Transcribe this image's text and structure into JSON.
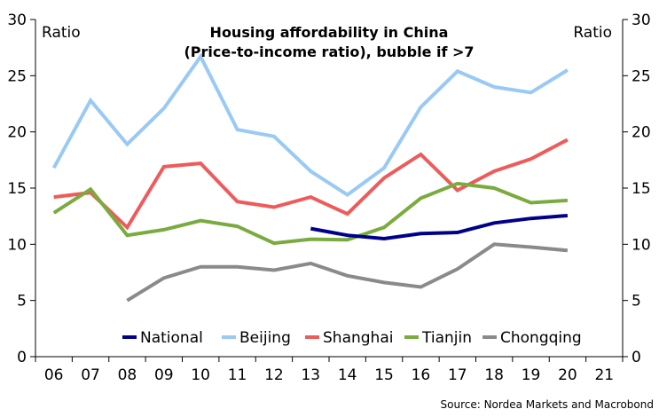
{
  "chart_data": {
    "type": "line",
    "title": [
      "Housing affordability in China",
      "(Price-to-income ratio), bubble if >7"
    ],
    "ylabel_left": "Ratio",
    "ylabel_right": "Ratio",
    "ylim": [
      0,
      30
    ],
    "yticks": [
      0,
      5,
      10,
      15,
      20,
      25,
      30
    ],
    "categories": [
      "06",
      "07",
      "08",
      "09",
      "10",
      "11",
      "12",
      "13",
      "14",
      "15",
      "16",
      "17",
      "18",
      "19",
      "20",
      "21"
    ],
    "grid": false,
    "legend_position": "bottom-inside",
    "series": [
      {
        "name": "National",
        "color": "#00008b",
        "values": [
          null,
          null,
          null,
          null,
          null,
          null,
          null,
          11.4,
          10.8,
          10.5,
          10.95,
          11.05,
          11.9,
          12.3,
          12.55,
          null
        ]
      },
      {
        "name": "Beijing",
        "color": "#99c9f5",
        "values": [
          16.8,
          22.8,
          18.9,
          22.1,
          26.7,
          20.2,
          19.6,
          16.5,
          14.4,
          16.8,
          22.2,
          25.4,
          24.0,
          23.5,
          25.5,
          null
        ]
      },
      {
        "name": "Shanghai",
        "color": "#ef5a5a",
        "values": [
          14.2,
          14.6,
          11.5,
          16.9,
          17.2,
          13.8,
          13.3,
          14.2,
          12.7,
          15.9,
          18.0,
          14.8,
          16.5,
          17.6,
          19.3,
          null
        ]
      },
      {
        "name": "Tianjin",
        "color": "#7aab3e",
        "values": [
          12.8,
          14.9,
          10.8,
          11.3,
          12.1,
          11.6,
          10.1,
          10.45,
          10.4,
          11.5,
          14.1,
          15.4,
          15.0,
          13.7,
          13.9,
          null
        ]
      },
      {
        "name": "Chongqing",
        "color": "#8a8a8a",
        "values": [
          null,
          null,
          5.0,
          7.0,
          8.0,
          8.0,
          7.7,
          8.3,
          7.2,
          6.6,
          6.2,
          7.8,
          10.0,
          9.75,
          9.45,
          null
        ]
      }
    ]
  },
  "source": "Source: Nordea Markets and Macrobond"
}
